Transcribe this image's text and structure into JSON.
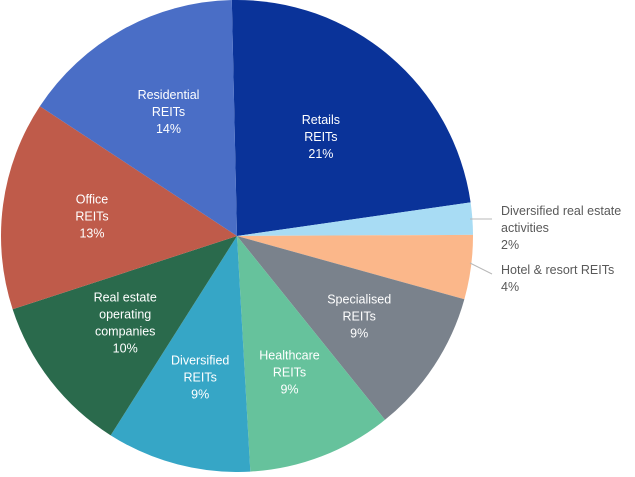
{
  "chart_data": {
    "type": "pie",
    "slices": [
      {
        "label_lines": [
          "Retails",
          "REITs"
        ],
        "value_label": "21%",
        "value": 21,
        "color": "#0a3399"
      },
      {
        "label_lines": [
          "Diversified real estate",
          "activities"
        ],
        "value_label": "2%",
        "value": 2,
        "color": "#a8dcf4"
      },
      {
        "label_lines": [
          "Hotel & resort REITs"
        ],
        "value_label": "4%",
        "value": 4,
        "color": "#fbb78a"
      },
      {
        "label_lines": [
          "Specialised",
          "REITs"
        ],
        "value_label": "9%",
        "value": 9,
        "color": "#7a828c"
      },
      {
        "label_lines": [
          "Healthcare",
          "REITs"
        ],
        "value_label": "9%",
        "value": 9,
        "color": "#66c29c"
      },
      {
        "label_lines": [
          "Diversified",
          "REITs"
        ],
        "value_label": "9%",
        "value": 9,
        "color": "#36a6c6"
      },
      {
        "label_lines": [
          "Real estate",
          "operating",
          "companies"
        ],
        "value_label": "10%",
        "value": 10,
        "color": "#2a6a4c"
      },
      {
        "label_lines": [
          "Office",
          "REITs"
        ],
        "value_label": "13%",
        "value": 13,
        "color": "#bf5b4a"
      },
      {
        "label_lines": [
          "Residential",
          "REITs"
        ],
        "value_label": "14%",
        "value": 14,
        "color": "#4a6ec6"
      }
    ]
  }
}
